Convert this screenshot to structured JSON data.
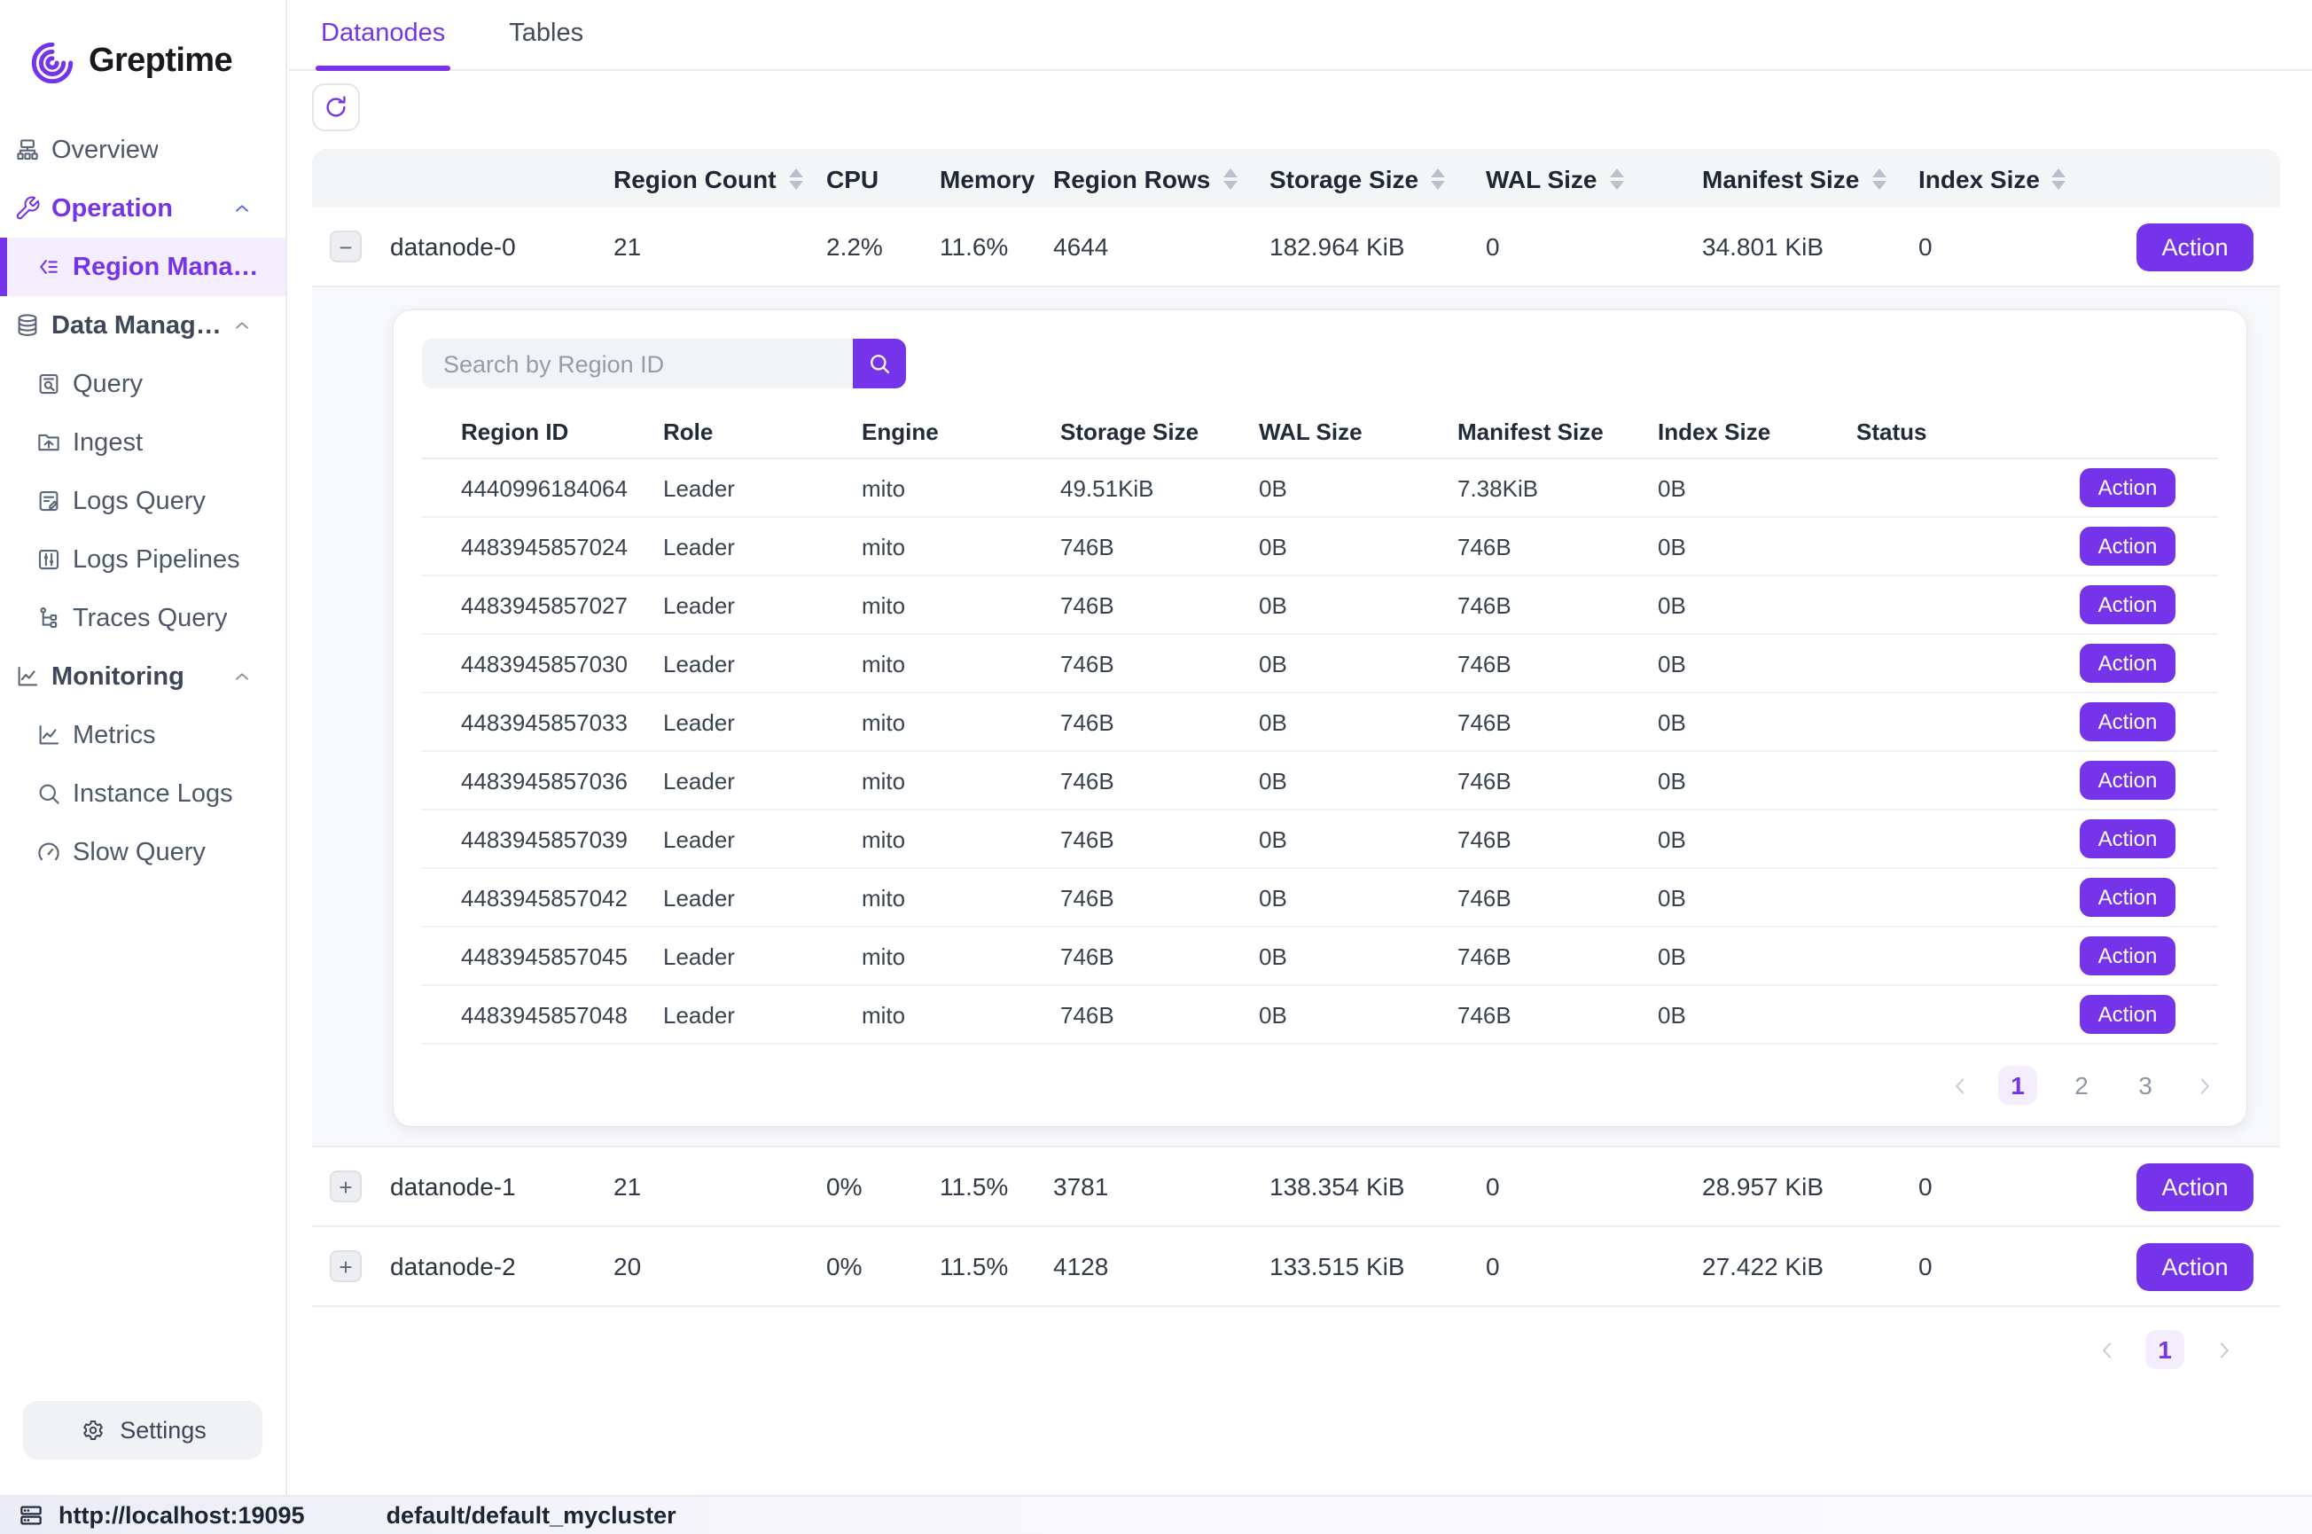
{
  "brand": {
    "name": "Greptime"
  },
  "tabs": [
    {
      "label": "Datanodes",
      "active": true
    },
    {
      "label": "Tables",
      "active": false
    }
  ],
  "sidebar": {
    "items": [
      {
        "type": "item",
        "icon": "overview",
        "label": "Overview"
      },
      {
        "type": "group",
        "icon": "wrench",
        "label": "Operation",
        "accent": true,
        "chevron": "up"
      },
      {
        "type": "child",
        "icon": "region",
        "label": "Region Management",
        "active": true
      },
      {
        "type": "group",
        "icon": "database",
        "label": "Data Management",
        "chevron": "up"
      },
      {
        "type": "child",
        "icon": "doc-search",
        "label": "Query"
      },
      {
        "type": "child",
        "icon": "ingest",
        "label": "Ingest"
      },
      {
        "type": "child",
        "icon": "logs-query",
        "label": "Logs Query"
      },
      {
        "type": "child",
        "icon": "pipelines",
        "label": "Logs Pipelines"
      },
      {
        "type": "child",
        "icon": "traces",
        "label": "Traces Query"
      },
      {
        "type": "group",
        "icon": "chart",
        "label": "Monitoring",
        "chevron": "up"
      },
      {
        "type": "child",
        "icon": "chart",
        "label": "Metrics"
      },
      {
        "type": "child",
        "icon": "search",
        "label": "Instance Logs"
      },
      {
        "type": "child",
        "icon": "gauge",
        "label": "Slow Query"
      }
    ],
    "settings_label": "Settings"
  },
  "datanodes_table": {
    "columns": [
      {
        "label": "Region Count",
        "sortable": true
      },
      {
        "label": "CPU",
        "sortable": false
      },
      {
        "label": "Memory",
        "sortable": false
      },
      {
        "label": "Region Rows",
        "sortable": true
      },
      {
        "label": "Storage Size",
        "sortable": true
      },
      {
        "label": "WAL Size",
        "sortable": true
      },
      {
        "label": "Manifest Size",
        "sortable": true
      },
      {
        "label": "Index Size",
        "sortable": true
      }
    ],
    "action_label": "Action",
    "rows": [
      {
        "name": "datanode-0",
        "expanded": true,
        "values": [
          "21",
          "2.2%",
          "11.6%",
          "4644",
          "182.964 KiB",
          "0",
          "34.801 KiB",
          "0"
        ]
      },
      {
        "name": "datanode-1",
        "expanded": false,
        "values": [
          "21",
          "0%",
          "11.5%",
          "3781",
          "138.354 KiB",
          "0",
          "28.957 KiB",
          "0"
        ]
      },
      {
        "name": "datanode-2",
        "expanded": false,
        "values": [
          "20",
          "0%",
          "11.5%",
          "4128",
          "133.515 KiB",
          "0",
          "27.422 KiB",
          "0"
        ]
      }
    ],
    "pagination": {
      "pages": [
        "1"
      ],
      "active": "1"
    }
  },
  "region_panel": {
    "search_placeholder": "Search by Region ID",
    "columns": [
      "Region ID",
      "Role",
      "Engine",
      "Storage Size",
      "WAL Size",
      "Manifest Size",
      "Index Size",
      "Status"
    ],
    "action_label": "Action",
    "rows": [
      {
        "id": "4440996184064",
        "role": "Leader",
        "engine": "mito",
        "storage": "49.51KiB",
        "wal": "0B",
        "manifest": "7.38KiB",
        "index": "0B",
        "status": ""
      },
      {
        "id": "4483945857024",
        "role": "Leader",
        "engine": "mito",
        "storage": "746B",
        "wal": "0B",
        "manifest": "746B",
        "index": "0B",
        "status": ""
      },
      {
        "id": "4483945857027",
        "role": "Leader",
        "engine": "mito",
        "storage": "746B",
        "wal": "0B",
        "manifest": "746B",
        "index": "0B",
        "status": ""
      },
      {
        "id": "4483945857030",
        "role": "Leader",
        "engine": "mito",
        "storage": "746B",
        "wal": "0B",
        "manifest": "746B",
        "index": "0B",
        "status": ""
      },
      {
        "id": "4483945857033",
        "role": "Leader",
        "engine": "mito",
        "storage": "746B",
        "wal": "0B",
        "manifest": "746B",
        "index": "0B",
        "status": ""
      },
      {
        "id": "4483945857036",
        "role": "Leader",
        "engine": "mito",
        "storage": "746B",
        "wal": "0B",
        "manifest": "746B",
        "index": "0B",
        "status": ""
      },
      {
        "id": "4483945857039",
        "role": "Leader",
        "engine": "mito",
        "storage": "746B",
        "wal": "0B",
        "manifest": "746B",
        "index": "0B",
        "status": ""
      },
      {
        "id": "4483945857042",
        "role": "Leader",
        "engine": "mito",
        "storage": "746B",
        "wal": "0B",
        "manifest": "746B",
        "index": "0B",
        "status": ""
      },
      {
        "id": "4483945857045",
        "role": "Leader",
        "engine": "mito",
        "storage": "746B",
        "wal": "0B",
        "manifest": "746B",
        "index": "0B",
        "status": ""
      },
      {
        "id": "4483945857048",
        "role": "Leader",
        "engine": "mito",
        "storage": "746B",
        "wal": "0B",
        "manifest": "746B",
        "index": "0B",
        "status": ""
      }
    ],
    "pagination": {
      "pages": [
        "1",
        "2",
        "3"
      ],
      "active": "1"
    }
  },
  "status_bar": {
    "url": "http://localhost:19095",
    "cluster": "default/default_mycluster"
  },
  "icons": {
    "brand": "greptime-spiral",
    "refresh": "refresh-arrow",
    "search_button": "magnifier",
    "settings": "gear",
    "status": "server-stack",
    "sort": "sort-arrows",
    "pagination_prev": "chevron-left",
    "pagination_next": "chevron-right",
    "group_chevron": "chevron-up",
    "collapse": "minus",
    "expand": "plus"
  },
  "colors": {
    "accent": "#7534e9",
    "accent_soft": "#f3edfd",
    "header_bg": "#f4f5f7",
    "panel_bg": "#f7f8fa"
  }
}
